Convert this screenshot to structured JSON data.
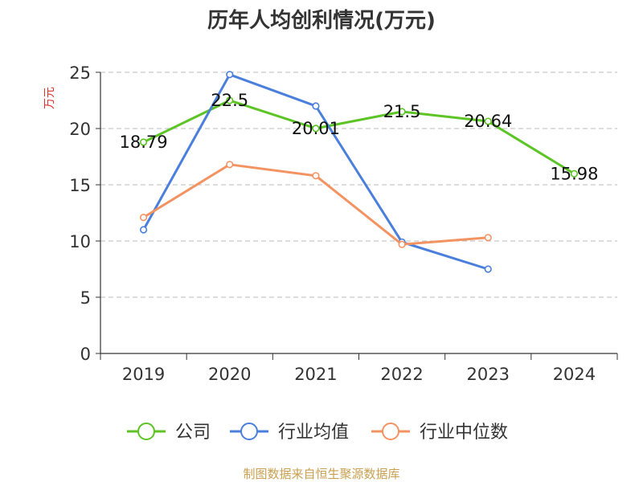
{
  "chart_data": {
    "type": "line",
    "title": "历年人均创利情况(万元)",
    "ylabel": "万元",
    "xlabel": "",
    "ylim": [
      0,
      25
    ],
    "yticks": [
      0,
      5,
      10,
      15,
      20,
      25
    ],
    "categories": [
      "2019",
      "2020",
      "2021",
      "2022",
      "2023",
      "2024"
    ],
    "grid": true,
    "legend_position": "bottom",
    "series": [
      {
        "name": "公司",
        "color": "#5cc424",
        "values": [
          18.79,
          22.5,
          20.01,
          21.5,
          20.64,
          15.98
        ],
        "labels": [
          "18.79",
          "22.5",
          "20.01",
          "21.5",
          "20.64",
          "15.98"
        ]
      },
      {
        "name": "行业均值",
        "color": "#4a7fdb",
        "values": [
          11.0,
          24.8,
          22.0,
          9.9,
          7.5,
          null
        ]
      },
      {
        "name": "行业中位数",
        "color": "#f39362",
        "values": [
          12.1,
          16.8,
          15.8,
          9.7,
          10.3,
          null
        ]
      }
    ],
    "source": "制图数据来自恒生聚源数据库"
  },
  "colors": {
    "title": "#333333",
    "axis": "#333333",
    "grid": "#bbbbbb",
    "ylabel": "#e03030",
    "source": "#c8a050"
  }
}
